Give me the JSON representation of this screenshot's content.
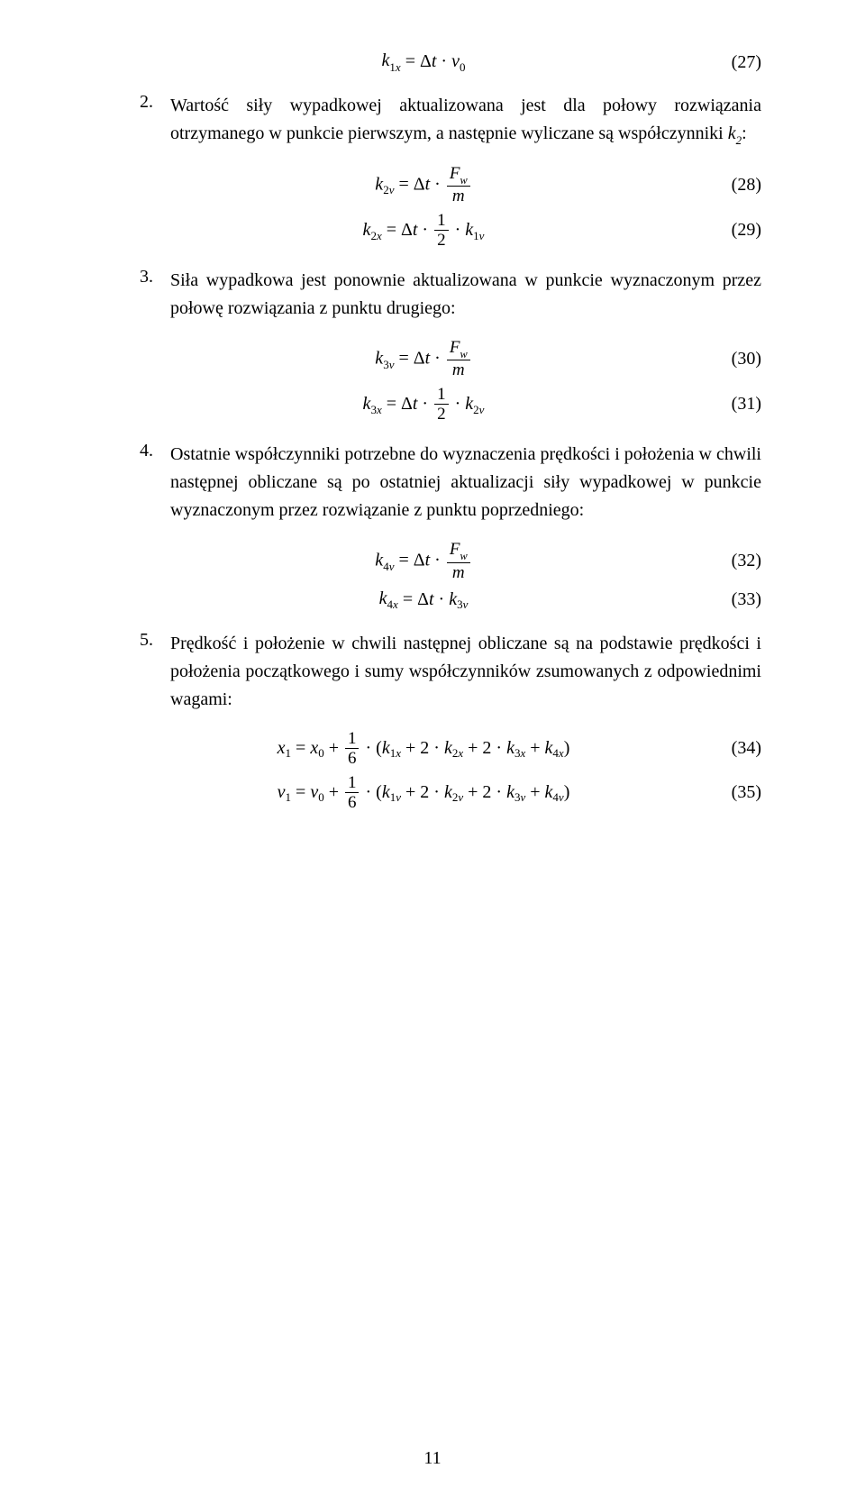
{
  "eq27": {
    "num": "(27)"
  },
  "step2": {
    "num": "2.",
    "text_a": "Wartość siły wypadkowej aktualizowana jest dla połowy rozwiązania otrzymanego w punkcie pierwszym, a następnie wyliczane są współczynniki ",
    "k2": "k",
    "k2_sub": "2",
    "colon": ":"
  },
  "eq28": {
    "num": "(28)"
  },
  "eq29": {
    "num": "(29)"
  },
  "step3": {
    "num": "3.",
    "text": "Siła wypadkowa jest ponownie aktualizowana w punkcie wyznaczonym przez połowę rozwiązania z punktu drugiego:"
  },
  "eq30": {
    "num": "(30)"
  },
  "eq31": {
    "num": "(31)"
  },
  "step4": {
    "num": "4.",
    "text": "Ostatnie współczynniki potrzebne do wyznaczenia prędkości i położenia w chwili następnej obliczane są po ostatniej aktualizacji siły wypadkowej w punkcie wyznaczonym przez rozwiązanie z punktu poprzedniego:"
  },
  "eq32": {
    "num": "(32)"
  },
  "eq33": {
    "num": "(33)"
  },
  "step5": {
    "num": "5.",
    "text": "Prędkość i położenie w chwili następnej obliczane są na podstawie prędkości i położenia początkowego i sumy współczynników zsumowanych z odpowiednimi wagami:"
  },
  "eq34": {
    "num": "(34)"
  },
  "eq35": {
    "num": "(35)"
  },
  "page_number": "11"
}
